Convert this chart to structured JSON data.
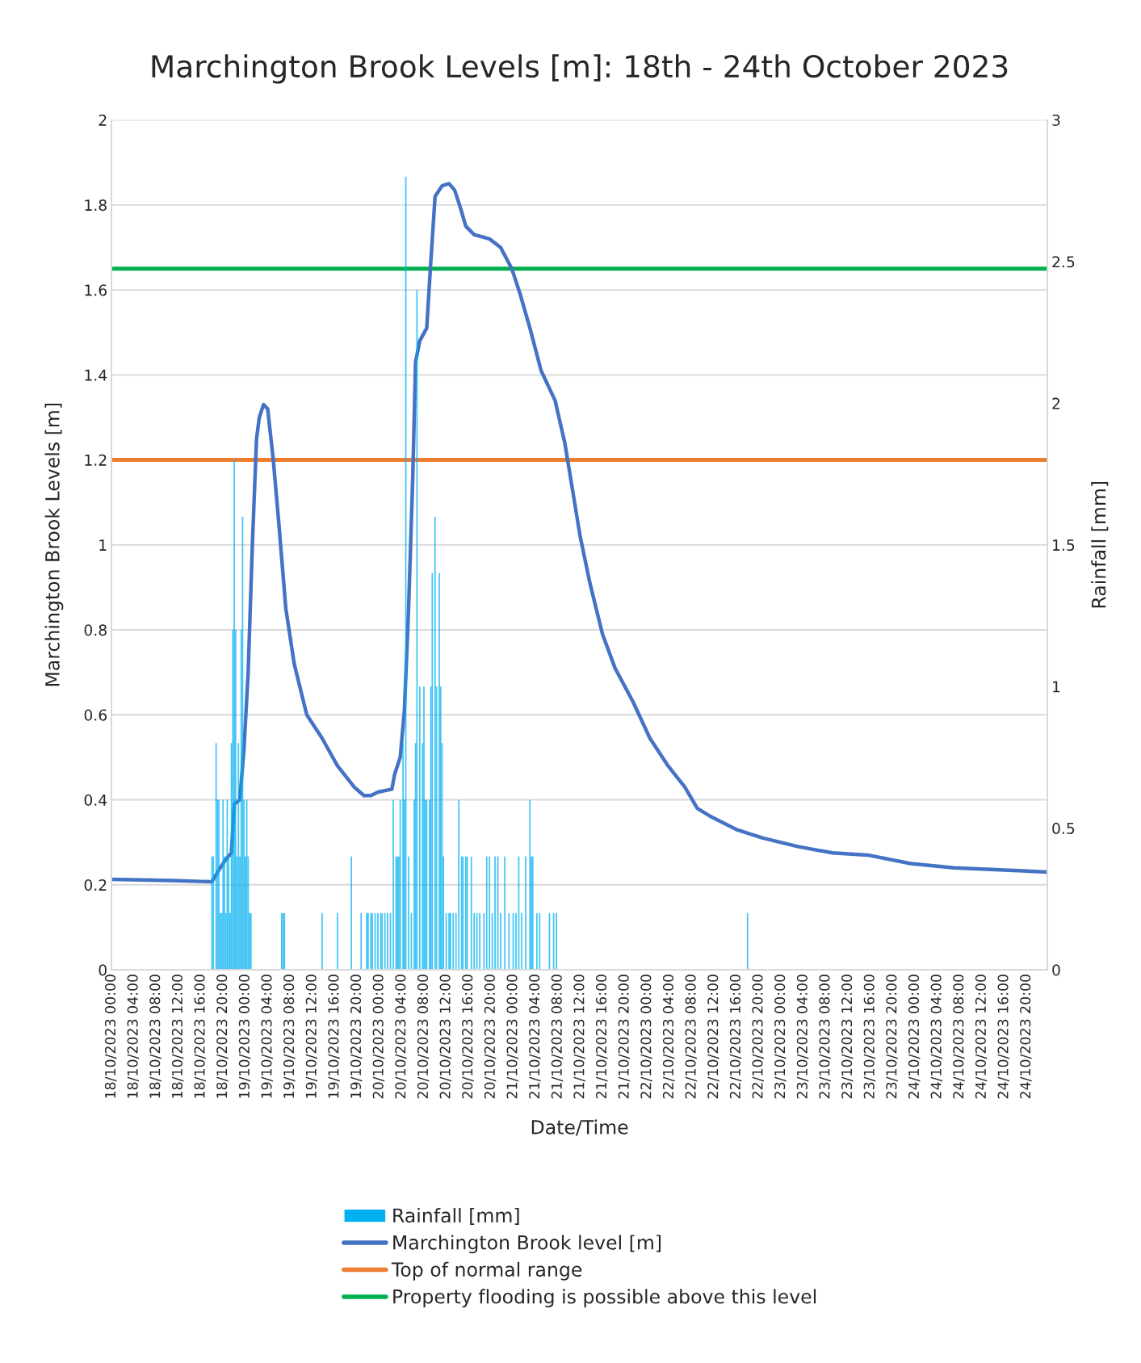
{
  "chart_data": {
    "type": "line",
    "title": "Marchington Brook Levels [m]: 18th - 24th October 2023",
    "xlabel": "Date/Time",
    "ylabel": "Marchington Brook Levels [m]",
    "y2label": "Rainfall [mm]",
    "xlim": [
      "2023-10-18T00:00",
      "2023-10-24T23:45"
    ],
    "xticks": [
      {
        "value": "2023-10-18T00:00",
        "label": "18/10/2023 00:00"
      },
      {
        "value": "2023-10-18T04:00",
        "label": "18/10/2023 04:00"
      },
      {
        "value": "2023-10-18T08:00",
        "label": "18/10/2023 08:00"
      },
      {
        "value": "2023-10-18T12:00",
        "label": "18/10/2023 12:00"
      },
      {
        "value": "2023-10-18T16:00",
        "label": "18/10/2023 16:00"
      },
      {
        "value": "2023-10-18T20:00",
        "label": "18/10/2023 20:00"
      },
      {
        "value": "2023-10-19T00:00",
        "label": "19/10/2023 00:00"
      },
      {
        "value": "2023-10-19T04:00",
        "label": "19/10/2023 04:00"
      },
      {
        "value": "2023-10-19T08:00",
        "label": "19/10/2023 08:00"
      },
      {
        "value": "2023-10-19T12:00",
        "label": "19/10/2023 12:00"
      },
      {
        "value": "2023-10-19T16:00",
        "label": "19/10/2023 16:00"
      },
      {
        "value": "2023-10-19T20:00",
        "label": "19/10/2023 20:00"
      },
      {
        "value": "2023-10-20T00:00",
        "label": "20/10/2023 00:00"
      },
      {
        "value": "2023-10-20T04:00",
        "label": "20/10/2023 04:00"
      },
      {
        "value": "2023-10-20T08:00",
        "label": "20/10/2023 08:00"
      },
      {
        "value": "2023-10-20T12:00",
        "label": "20/10/2023 12:00"
      },
      {
        "value": "2023-10-20T16:00",
        "label": "20/10/2023 16:00"
      },
      {
        "value": "2023-10-20T20:00",
        "label": "20/10/2023 20:00"
      },
      {
        "value": "2023-10-21T00:00",
        "label": "21/10/2023 00:00"
      },
      {
        "value": "2023-10-21T04:00",
        "label": "21/10/2023 04:00"
      },
      {
        "value": "2023-10-21T08:00",
        "label": "21/10/2023 08:00"
      },
      {
        "value": "2023-10-21T12:00",
        "label": "21/10/2023 12:00"
      },
      {
        "value": "2023-10-21T16:00",
        "label": "21/10/2023 16:00"
      },
      {
        "value": "2023-10-21T20:00",
        "label": "21/10/2023 20:00"
      },
      {
        "value": "2023-10-22T00:00",
        "label": "22/10/2023 00:00"
      },
      {
        "value": "2023-10-22T04:00",
        "label": "22/10/2023 04:00"
      },
      {
        "value": "2023-10-22T08:00",
        "label": "22/10/2023 08:00"
      },
      {
        "value": "2023-10-22T12:00",
        "label": "22/10/2023 12:00"
      },
      {
        "value": "2023-10-22T16:00",
        "label": "22/10/2023 16:00"
      },
      {
        "value": "2023-10-22T20:00",
        "label": "22/10/2023 20:00"
      },
      {
        "value": "2023-10-23T00:00",
        "label": "23/10/2023 00:00"
      },
      {
        "value": "2023-10-23T04:00",
        "label": "23/10/2023 04:00"
      },
      {
        "value": "2023-10-23T08:00",
        "label": "23/10/2023 08:00"
      },
      {
        "value": "2023-10-23T12:00",
        "label": "23/10/2023 12:00"
      },
      {
        "value": "2023-10-23T16:00",
        "label": "23/10/2023 16:00"
      },
      {
        "value": "2023-10-23T20:00",
        "label": "23/10/2023 20:00"
      },
      {
        "value": "2023-10-24T00:00",
        "label": "24/10/2023 00:00"
      },
      {
        "value": "2023-10-24T04:00",
        "label": "24/10/2023 04:00"
      },
      {
        "value": "2023-10-24T08:00",
        "label": "24/10/2023 08:00"
      },
      {
        "value": "2023-10-24T12:00",
        "label": "24/10/2023 12:00"
      },
      {
        "value": "2023-10-24T16:00",
        "label": "24/10/2023 16:00"
      },
      {
        "value": "2023-10-24T20:00",
        "label": "24/10/2023 20:00"
      }
    ],
    "ylim": [
      0,
      2
    ],
    "yticks": [
      0,
      0.2,
      0.4,
      0.6,
      0.8,
      1,
      1.2,
      1.4,
      1.6,
      1.8,
      2
    ],
    "y2lim": [
      0,
      3
    ],
    "y2ticks": [
      0,
      0.5,
      1,
      1.5,
      2,
      2.5,
      3
    ],
    "grid": "y",
    "legend": "bottom",
    "series": [
      {
        "name": "Rainfall [mm]",
        "type": "bar",
        "axis": "y2",
        "color": "#00b0f0",
        "x": [
          "2023-10-18T18:00",
          "2023-10-18T18:15",
          "2023-10-18T18:45",
          "2023-10-18T19:00",
          "2023-10-18T19:15",
          "2023-10-18T19:30",
          "2023-10-18T19:45",
          "2023-10-18T20:00",
          "2023-10-18T20:15",
          "2023-10-18T20:30",
          "2023-10-18T20:45",
          "2023-10-18T21:00",
          "2023-10-18T21:15",
          "2023-10-18T21:30",
          "2023-10-18T21:45",
          "2023-10-18T22:00",
          "2023-10-18T22:15",
          "2023-10-18T22:30",
          "2023-10-18T22:45",
          "2023-10-18T23:00",
          "2023-10-18T23:15",
          "2023-10-18T23:30",
          "2023-10-18T23:45",
          "2023-10-19T00:00",
          "2023-10-19T00:15",
          "2023-10-19T00:30",
          "2023-10-19T00:45",
          "2023-10-19T01:00",
          "2023-10-19T06:30",
          "2023-10-19T06:45",
          "2023-10-19T07:00",
          "2023-10-19T13:45",
          "2023-10-19T16:30",
          "2023-10-19T19:00",
          "2023-10-19T20:45",
          "2023-10-19T21:45",
          "2023-10-19T22:00",
          "2023-10-19T22:30",
          "2023-10-19T22:45",
          "2023-10-19T23:15",
          "2023-10-19T23:45",
          "2023-10-20T00:15",
          "2023-10-20T00:30",
          "2023-10-20T01:00",
          "2023-10-20T01:30",
          "2023-10-20T02:00",
          "2023-10-20T02:30",
          "2023-10-20T03:00",
          "2023-10-20T03:15",
          "2023-10-20T03:30",
          "2023-10-20T03:45",
          "2023-10-20T04:15",
          "2023-10-20T04:30",
          "2023-10-20T04:45",
          "2023-10-20T05:15",
          "2023-10-20T05:45",
          "2023-10-20T06:15",
          "2023-10-20T06:30",
          "2023-10-20T06:45",
          "2023-10-20T07:15",
          "2023-10-20T07:45",
          "2023-10-20T08:00",
          "2023-10-20T08:15",
          "2023-10-20T08:30",
          "2023-10-20T09:00",
          "2023-10-20T09:15",
          "2023-10-20T09:30",
          "2023-10-20T10:00",
          "2023-10-20T10:15",
          "2023-10-20T10:45",
          "2023-10-20T11:00",
          "2023-10-20T11:15",
          "2023-10-20T11:30",
          "2023-10-20T12:00",
          "2023-10-20T12:30",
          "2023-10-20T12:45",
          "2023-10-20T13:15",
          "2023-10-20T13:45",
          "2023-10-20T14:15",
          "2023-10-20T14:45",
          "2023-10-20T15:00",
          "2023-10-20T15:30",
          "2023-10-20T15:45",
          "2023-10-20T16:30",
          "2023-10-20T17:00",
          "2023-10-20T17:30",
          "2023-10-20T18:00",
          "2023-10-20T18:45",
          "2023-10-20T19:15",
          "2023-10-20T19:45",
          "2023-10-20T20:15",
          "2023-10-20T20:45",
          "2023-10-20T21:15",
          "2023-10-20T21:45",
          "2023-10-20T22:30",
          "2023-10-20T23:15",
          "2023-10-21T00:00",
          "2023-10-21T00:30",
          "2023-10-21T01:00",
          "2023-10-21T01:30",
          "2023-10-21T02:15",
          "2023-10-21T03:00",
          "2023-10-21T03:15",
          "2023-10-21T03:30",
          "2023-10-21T04:15",
          "2023-10-21T04:45",
          "2023-10-21T06:30",
          "2023-10-21T07:15",
          "2023-10-21T07:45",
          "2023-10-22T18:00"
        ],
        "values": [
          0.4,
          0.4,
          0.8,
          0.6,
          0.6,
          0.2,
          0.2,
          0.6,
          0.4,
          0.2,
          0.6,
          0.4,
          0.2,
          0.8,
          1.2,
          1.8,
          1.2,
          0.4,
          0.8,
          0.4,
          1.2,
          1.6,
          0.6,
          0.4,
          0.6,
          0.4,
          0.2,
          0.2,
          0.2,
          0.2,
          0.2,
          0.2,
          0.2,
          0.4,
          0.2,
          0.2,
          0.2,
          0.2,
          0.2,
          0.2,
          0.2,
          0.2,
          0.2,
          0.2,
          0.2,
          0.2,
          0.6,
          0.4,
          0.4,
          0.4,
          0.6,
          0.8,
          0.6,
          2.8,
          0.4,
          0.2,
          0.6,
          0.8,
          2.4,
          1.0,
          0.8,
          1.0,
          0.6,
          0.6,
          0.6,
          1.0,
          1.4,
          1.6,
          1.0,
          1.4,
          1.0,
          0.8,
          0.4,
          0.2,
          0.2,
          0.2,
          0.2,
          0.2,
          0.6,
          0.4,
          0.4,
          0.4,
          0.4,
          0.4,
          0.2,
          0.2,
          0.2,
          0.2,
          0.4,
          0.4,
          0.2,
          0.4,
          0.4,
          0.2,
          0.4,
          0.2,
          0.2,
          0.2,
          0.4,
          0.2,
          0.4,
          0.6,
          0.4,
          0.4,
          0.2,
          0.2,
          0.2,
          0.2,
          0.2,
          0.2
        ]
      },
      {
        "name": "Marchington Brook level [m]",
        "color": "#4472c4",
        "x": [
          "2023-10-18T00:00",
          "2023-10-18T11:00",
          "2023-10-18T18:00",
          "2023-10-18T19:30",
          "2023-10-18T20:30",
          "2023-10-18T21:30",
          "2023-10-18T22:00",
          "2023-10-18T23:00",
          "2023-10-18T23:45",
          "2023-10-19T00:30",
          "2023-10-19T01:15",
          "2023-10-19T02:00",
          "2023-10-19T02:30",
          "2023-10-19T03:15",
          "2023-10-19T04:00",
          "2023-10-19T05:00",
          "2023-10-19T06:00",
          "2023-10-19T07:15",
          "2023-10-19T08:45",
          "2023-10-19T11:00",
          "2023-10-19T13:45",
          "2023-10-19T16:30",
          "2023-10-19T19:30",
          "2023-10-19T21:15",
          "2023-10-19T22:30",
          "2023-10-19T23:45",
          "2023-10-20T02:15",
          "2023-10-20T02:45",
          "2023-10-20T03:45",
          "2023-10-20T04:30",
          "2023-10-20T05:15",
          "2023-10-20T06:00",
          "2023-10-20T06:30",
          "2023-10-20T07:15",
          "2023-10-20T08:30",
          "2023-10-20T09:15",
          "2023-10-20T10:00",
          "2023-10-20T11:15",
          "2023-10-20T12:30",
          "2023-10-20T13:30",
          "2023-10-20T14:30",
          "2023-10-20T15:30",
          "2023-10-20T17:00",
          "2023-10-20T19:45",
          "2023-10-20T21:45",
          "2023-10-20T23:45",
          "2023-10-21T01:15",
          "2023-10-21T03:00",
          "2023-10-21T05:00",
          "2023-10-21T07:30",
          "2023-10-21T09:15",
          "2023-10-21T10:30",
          "2023-10-21T12:00",
          "2023-10-21T13:45",
          "2023-10-21T16:00",
          "2023-10-21T18:15",
          "2023-10-21T21:30",
          "2023-10-22T00:30",
          "2023-10-22T03:45",
          "2023-10-22T06:45",
          "2023-10-22T09:00",
          "2023-10-22T11:30",
          "2023-10-22T16:00",
          "2023-10-22T20:45",
          "2023-10-23T03:00",
          "2023-10-23T09:15",
          "2023-10-23T15:30",
          "2023-10-23T23:15",
          "2023-10-24T07:00",
          "2023-10-24T23:45"
        ],
        "values": [
          0.213,
          0.21,
          0.207,
          0.24,
          0.26,
          0.275,
          0.39,
          0.4,
          0.52,
          0.7,
          1.0,
          1.25,
          1.3,
          1.33,
          1.32,
          1.2,
          1.05,
          0.85,
          0.72,
          0.6,
          0.545,
          0.48,
          0.43,
          0.41,
          0.41,
          0.418,
          0.425,
          0.46,
          0.5,
          0.61,
          0.85,
          1.16,
          1.43,
          1.48,
          1.51,
          1.67,
          1.82,
          1.845,
          1.85,
          1.835,
          1.795,
          1.75,
          1.73,
          1.72,
          1.7,
          1.65,
          1.59,
          1.51,
          1.41,
          1.34,
          1.24,
          1.14,
          1.02,
          0.91,
          0.79,
          0.71,
          0.63,
          0.545,
          0.48,
          0.43,
          0.38,
          0.36,
          0.33,
          0.31,
          0.29,
          0.275,
          0.27,
          0.25,
          0.24,
          0.23
        ]
      }
    ],
    "ref_lines": [
      {
        "axis": "y",
        "value": 1.2,
        "label": "Top of normal range",
        "color": "#ed7d31"
      },
      {
        "axis": "y",
        "value": 1.65,
        "label": "Property flooding is possible above this level",
        "color": "#00b050"
      }
    ]
  }
}
